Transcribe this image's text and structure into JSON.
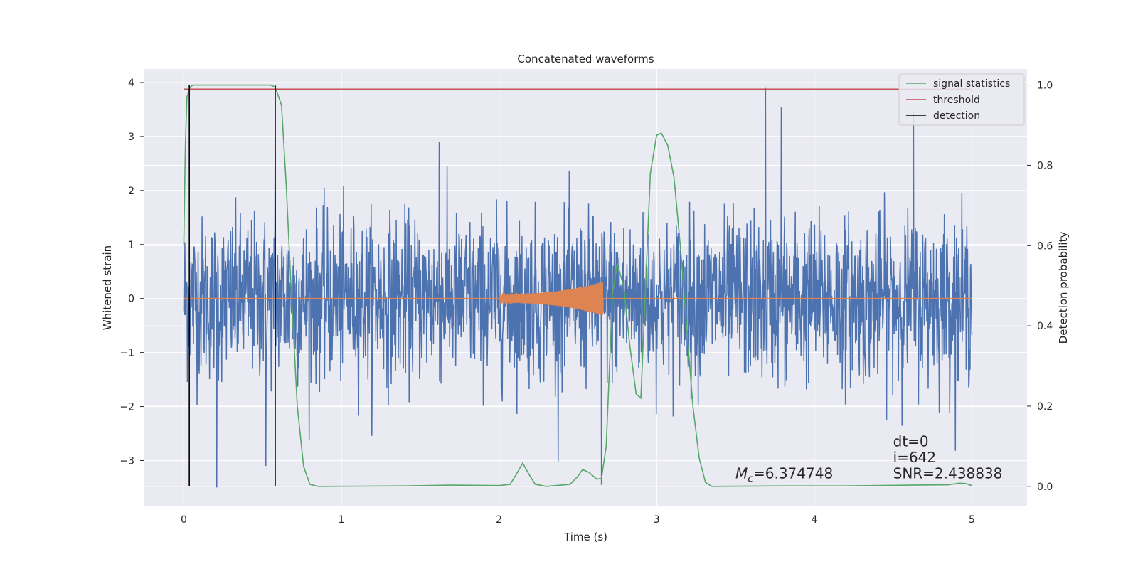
{
  "chart_data": {
    "type": "line",
    "title": "Concatenated waveforms",
    "xlabel": "Time (s)",
    "ylabel_left": "Whitened strain",
    "ylabel_right": "Detection probability",
    "xlim": [
      -0.25,
      5.35
    ],
    "ylim_left": [
      -3.85,
      4.25
    ],
    "ylim_right": [
      -0.05,
      1.04
    ],
    "x_ticks": [
      0,
      1,
      2,
      3,
      4,
      5
    ],
    "y_ticks_left": [
      -3,
      -2,
      -1,
      0,
      1,
      2,
      3,
      4
    ],
    "y_ticks_right": [
      0.0,
      0.2,
      0.4,
      0.6,
      0.8,
      1.0
    ],
    "x_tick_labels": [
      "0",
      "1",
      "2",
      "3",
      "4",
      "5"
    ],
    "y_tick_labels_left": [
      "−3",
      "−2",
      "−1",
      "0",
      "1",
      "2",
      "3",
      "4"
    ],
    "y_tick_labels_right": [
      "0.0",
      "0.2",
      "0.4",
      "0.6",
      "0.8",
      "1.0"
    ],
    "grid": true,
    "legend_position": "top-right",
    "series": [
      {
        "name": "",
        "axis": "left",
        "kind": "noise",
        "x_range": [
          0,
          5
        ],
        "amplitude_std": 0.75,
        "notable_spikes": [
          {
            "x": 0.21,
            "y": -3.5
          },
          {
            "x": 0.52,
            "y": -3.1
          },
          {
            "x": 0.58,
            "y": 2.95
          },
          {
            "x": 1.62,
            "y": 2.9
          },
          {
            "x": 3.69,
            "y": 3.9
          },
          {
            "x": 3.79,
            "y": 3.55
          },
          {
            "x": 4.63,
            "y": 3.45
          },
          {
            "x": 2.65,
            "y": -3.45
          }
        ],
        "color": "#4c72b0"
      },
      {
        "name": "",
        "axis": "left",
        "kind": "chirp",
        "x_range": [
          0,
          5
        ],
        "chirp_start": 2.0,
        "chirp_end": 2.66,
        "chirp_amp_start": 0.08,
        "chirp_amp_end": 0.32,
        "color": "#dd8452"
      },
      {
        "name": "signal statistics",
        "axis": "right",
        "color": "#55a868",
        "points": [
          [
            0.0,
            0.6
          ],
          [
            0.01,
            0.85
          ],
          [
            0.02,
            0.97
          ],
          [
            0.04,
            0.995
          ],
          [
            0.06,
            1.0
          ],
          [
            0.1,
            1.0
          ],
          [
            0.55,
            1.0
          ],
          [
            0.58,
            0.995
          ],
          [
            0.62,
            0.95
          ],
          [
            0.65,
            0.75
          ],
          [
            0.68,
            0.5
          ],
          [
            0.72,
            0.2
          ],
          [
            0.76,
            0.05
          ],
          [
            0.8,
            0.005
          ],
          [
            0.85,
            0.0
          ],
          [
            1.4,
            0.001
          ],
          [
            1.7,
            0.003
          ],
          [
            2.0,
            0.002
          ],
          [
            2.07,
            0.005
          ],
          [
            2.11,
            0.03
          ],
          [
            2.15,
            0.058
          ],
          [
            2.19,
            0.03
          ],
          [
            2.23,
            0.005
          ],
          [
            2.3,
            0.0
          ],
          [
            2.45,
            0.005
          ],
          [
            2.5,
            0.025
          ],
          [
            2.53,
            0.042
          ],
          [
            2.57,
            0.035
          ],
          [
            2.62,
            0.018
          ],
          [
            2.65,
            0.02
          ],
          [
            2.68,
            0.1
          ],
          [
            2.72,
            0.48
          ],
          [
            2.75,
            0.555
          ],
          [
            2.79,
            0.5
          ],
          [
            2.83,
            0.35
          ],
          [
            2.87,
            0.23
          ],
          [
            2.9,
            0.22
          ],
          [
            2.93,
            0.5
          ],
          [
            2.96,
            0.78
          ],
          [
            3.0,
            0.875
          ],
          [
            3.03,
            0.88
          ],
          [
            3.07,
            0.85
          ],
          [
            3.11,
            0.77
          ],
          [
            3.15,
            0.6
          ],
          [
            3.19,
            0.4
          ],
          [
            3.23,
            0.2
          ],
          [
            3.27,
            0.07
          ],
          [
            3.31,
            0.01
          ],
          [
            3.35,
            0.0
          ],
          [
            3.8,
            0.001
          ],
          [
            4.2,
            0.001
          ],
          [
            4.6,
            0.003
          ],
          [
            4.85,
            0.004
          ],
          [
            4.92,
            0.008
          ],
          [
            4.96,
            0.007
          ],
          [
            5.0,
            0.002
          ]
        ]
      },
      {
        "name": "threshold",
        "axis": "right",
        "color": "#c44e52",
        "y": 0.99,
        "x_range": [
          0,
          5
        ]
      },
      {
        "name": "detection",
        "axis": "right",
        "color": "#000000",
        "x_positions": [
          0.035,
          0.58
        ],
        "y_range": [
          0,
          1
        ]
      }
    ],
    "annotations": [
      {
        "label_symbol": "M",
        "label_subscript": "c",
        "value_text": "=6.374748",
        "x": 3.5,
        "y": 0.02
      },
      {
        "text": "dt=0",
        "x": 4.5,
        "y": 0.1
      },
      {
        "text": "i=642",
        "x": 4.5,
        "y": 0.06
      },
      {
        "text": "SNR=2.438838",
        "x": 4.5,
        "y": 0.02
      }
    ]
  }
}
